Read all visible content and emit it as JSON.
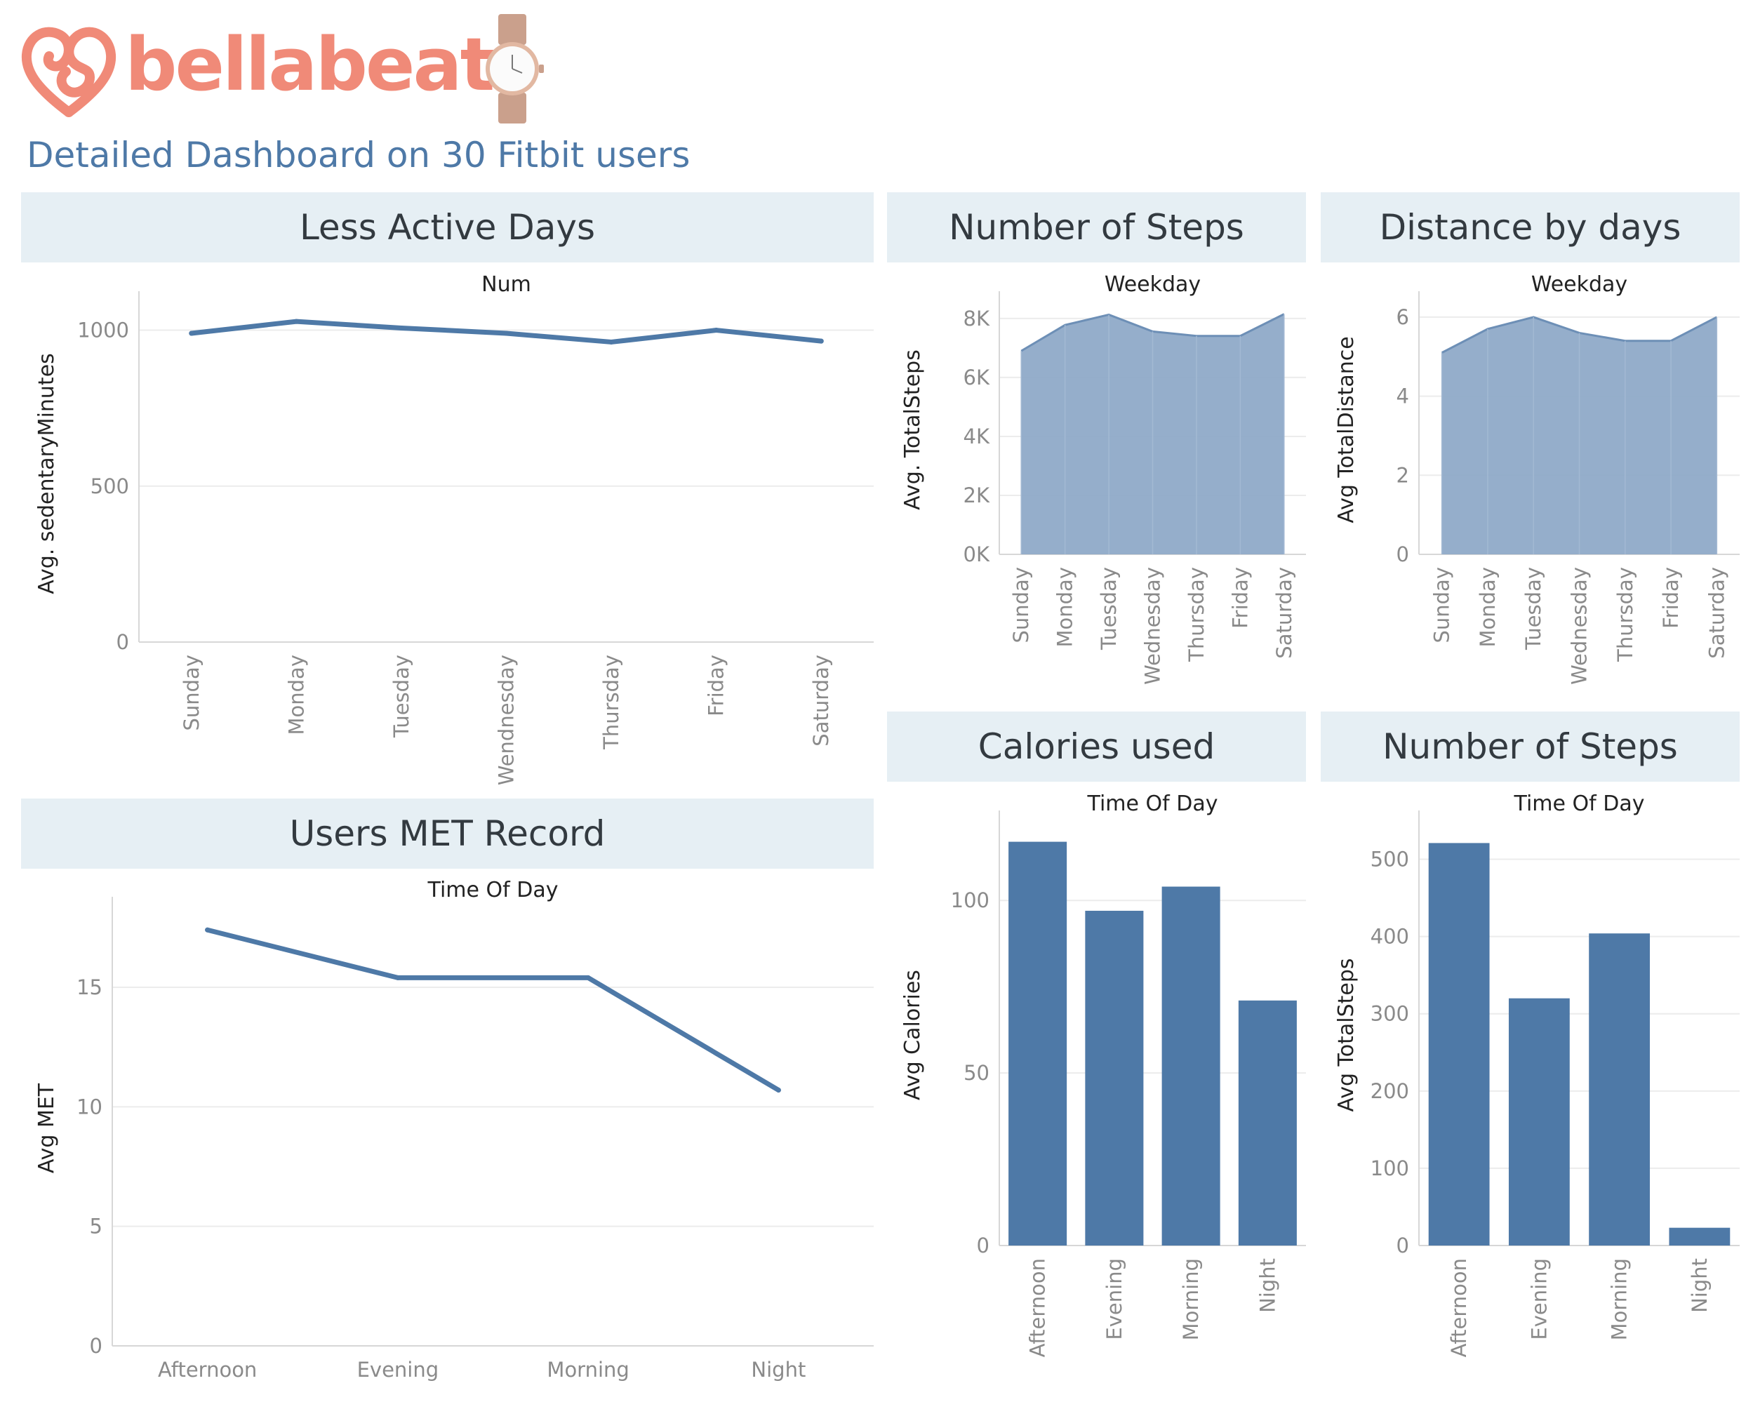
{
  "header": {
    "brand_name": "bellabeat",
    "title": "Detailed Dashboard on 30 Fitbit users"
  },
  "colors": {
    "accent": "#4e79a7",
    "brand": "#f08a78",
    "panel_header_bg": "#e6eff4",
    "area_fill": "#8faac8"
  },
  "panels": {
    "less_active": "Less Active Days",
    "steps_weekday": "Number of Steps",
    "distance": "Distance by days",
    "met": "Users MET Record",
    "calories": "Calories used",
    "steps_tod": "Number of Steps"
  },
  "chart_data": [
    {
      "id": "sedentary",
      "type": "line",
      "title": "Less Active Days",
      "xlabel": "Num",
      "ylabel": "Avg. sedentaryMinutes",
      "categories": [
        "Sunday",
        "Monday",
        "Tuesday",
        "Wendnesday",
        "Thursday",
        "Friday",
        "Saturday"
      ],
      "values": [
        990,
        1028,
        1007,
        990,
        962,
        1000,
        965
      ],
      "ylim": [
        0,
        1080
      ],
      "yticks": [
        0,
        500,
        1000
      ],
      "grid": true
    },
    {
      "id": "steps_weekday",
      "type": "area",
      "title": "Number of Steps",
      "xlabel": "Weekday",
      "ylabel": "Avg. TotalSteps",
      "categories": [
        "Sunday",
        "Monday",
        "Tuesday",
        "Wednesday",
        "Thursday",
        "Friday",
        "Saturday"
      ],
      "values": [
        6900,
        7780,
        8130,
        7560,
        7410,
        7410,
        8150
      ],
      "ylim": [
        0,
        8450
      ],
      "yticks": [
        0,
        2000,
        4000,
        6000,
        8000
      ],
      "ytick_labels": [
        "0K",
        "2K",
        "4K",
        "6K",
        "8K"
      ],
      "grid": true
    },
    {
      "id": "distance",
      "type": "area",
      "title": "Distance by days",
      "xlabel": "Weekday",
      "ylabel": "Avg TotalDistance",
      "categories": [
        "Sunday",
        "Monday",
        "Tuesday",
        "Wednesday",
        "Thursday",
        "Friday",
        "Saturday"
      ],
      "values": [
        5.1,
        5.7,
        6.0,
        5.6,
        5.4,
        5.4,
        6.0
      ],
      "ylim": [
        0,
        6.3
      ],
      "yticks": [
        0,
        2,
        4,
        6
      ],
      "grid": true
    },
    {
      "id": "met",
      "type": "line",
      "title": "Users MET Record",
      "xlabel": "Time Of Day",
      "ylabel": "Avg MET",
      "categories": [
        "Afternoon",
        "Evening",
        "Morning",
        "Night"
      ],
      "values": [
        17.4,
        15.4,
        15.4,
        10.7
      ],
      "ylim": [
        0,
        18.2
      ],
      "yticks": [
        0,
        5,
        10,
        15
      ],
      "grid": true
    },
    {
      "id": "calories",
      "type": "bar",
      "title": "Calories used",
      "xlabel": "Time Of Day",
      "ylabel": "Avg Calories",
      "categories": [
        "Afternoon",
        "Evening",
        "Morning",
        "Night"
      ],
      "values": [
        117,
        97,
        104,
        71
      ],
      "ylim": [
        0,
        122
      ],
      "yticks": [
        0,
        50,
        100
      ],
      "grid": true
    },
    {
      "id": "steps_tod",
      "type": "bar",
      "title": "Number of Steps",
      "xlabel": "Time Of Day",
      "ylabel": "Avg TotalSteps",
      "categories": [
        "Afternoon",
        "Evening",
        "Morning",
        "Night"
      ],
      "values": [
        521,
        320,
        404,
        23
      ],
      "ylim": [
        0,
        545
      ],
      "yticks": [
        0,
        100,
        200,
        300,
        400,
        500
      ],
      "grid": true
    }
  ]
}
